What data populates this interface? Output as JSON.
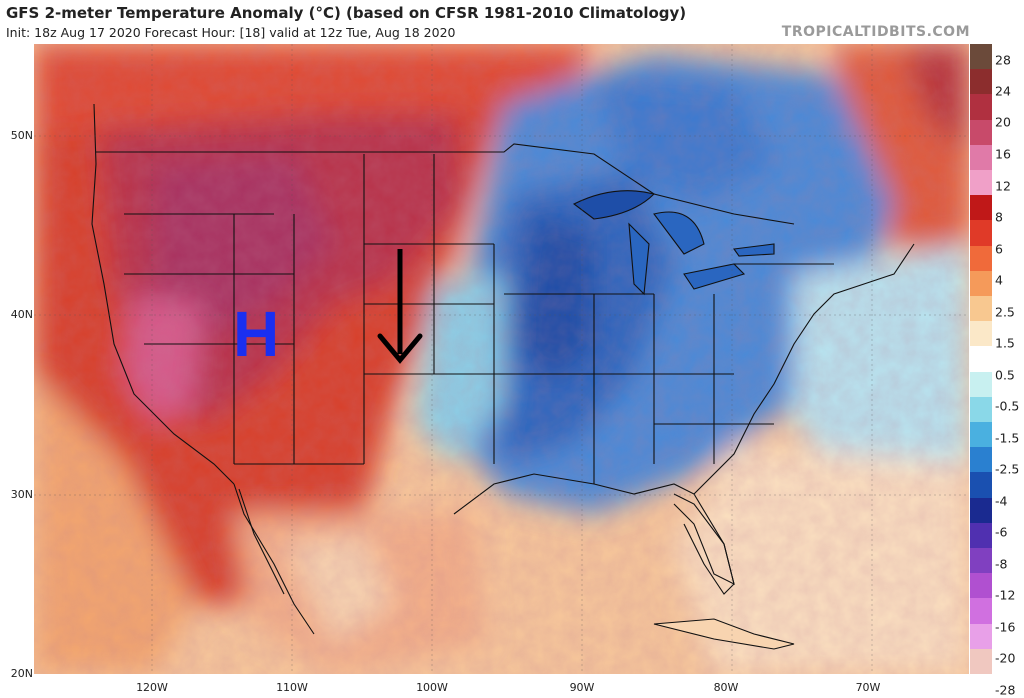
{
  "header": {
    "title": "GFS 2-meter Temperature Anomaly (°C) (based on CFSR 1981-2010 Climatology)",
    "subtitle": "Init: 18z Aug 17 2020   Forecast Hour: [18]   valid at 12z Tue, Aug 18 2020",
    "site": "TROPICALTIDBITS.COM"
  },
  "map": {
    "latitude_labels": [
      "50N",
      "40N",
      "30N",
      "20N"
    ],
    "longitude_labels": [
      "120W",
      "110W",
      "100W",
      "90W",
      "80W",
      "70W"
    ],
    "annotation_h": "H",
    "arrow_annotation": "down-arrow-icon"
  },
  "colorbar": {
    "labels": [
      "28",
      "24",
      "20",
      "16",
      "12",
      "8",
      "6",
      "4",
      "2.5",
      "1.5",
      "0.5",
      "-0.5",
      "-1.5",
      "-2.5",
      "-4",
      "-6",
      "-8",
      "-12",
      "-16",
      "-20",
      "-28"
    ],
    "colors": [
      "#6b4a3a",
      "#8c2d2d",
      "#b03040",
      "#c84a6a",
      "#e07aa8",
      "#f0a0c8",
      "#c01818",
      "#e03a28",
      "#f06a3a",
      "#f59a5a",
      "#f8c890",
      "#fbe8c8",
      "#ffffff",
      "#c8f0f0",
      "#8ad8e8",
      "#4ab0e0",
      "#2a80d0",
      "#1a50b0",
      "#1a2a90",
      "#5030b0",
      "#8040c0",
      "#b050d0",
      "#d070e0",
      "#e8a0e8",
      "#f0c8c0"
    ]
  }
}
